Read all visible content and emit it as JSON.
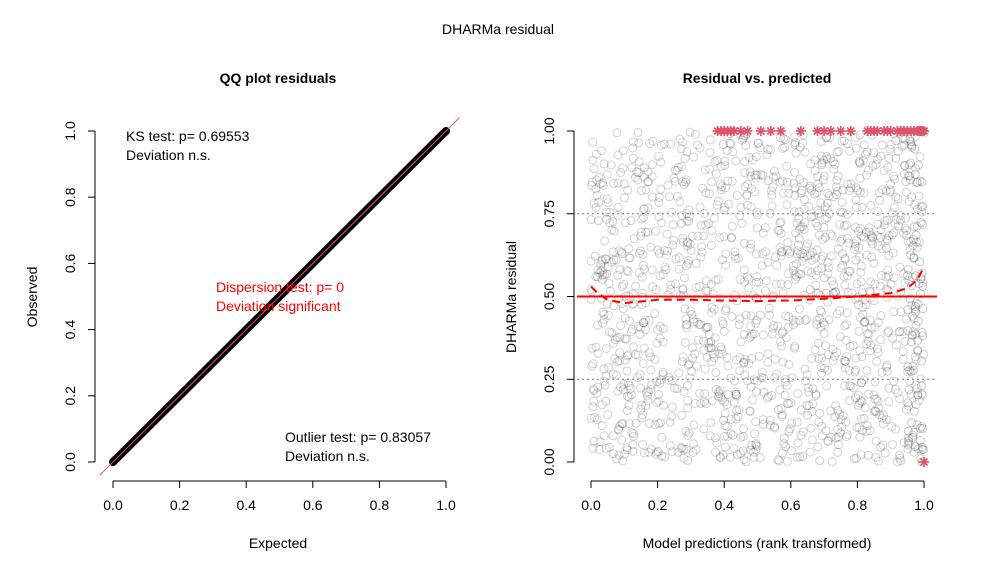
{
  "title": "DHARMa residual",
  "colors": {
    "line_red": "#ff0000",
    "identity_red": "#df536b",
    "outlier": "#df536b",
    "points": "#000000",
    "grid": "#777777"
  },
  "chart_data": [
    {
      "type": "scatter",
      "panel": "left",
      "title": "QQ plot residuals",
      "xlabel": "Expected",
      "ylabel": "Observed",
      "xlim": [
        0,
        1
      ],
      "ylim": [
        0,
        1
      ],
      "xticks": [
        "0.0",
        "0.2",
        "0.4",
        "0.6",
        "0.8",
        "1.0"
      ],
      "yticks": [
        "0.0",
        "0.2",
        "0.4",
        "0.6",
        "0.8",
        "1.0"
      ],
      "series": [
        {
          "x": [
            0,
            1
          ],
          "y": [
            0,
            1
          ]
        }
      ],
      "annotations": {
        "ks": [
          "KS test: p= 0.69553",
          "Deviation  n.s."
        ],
        "dispersion": [
          "Dispersion test: p= 0",
          "Deviation  significant"
        ],
        "outlier": [
          "Outlier test: p= 0.83057",
          "Deviation  n.s."
        ]
      }
    },
    {
      "type": "scatter",
      "panel": "right",
      "title": "Residual vs. predicted",
      "xlabel": "Model predictions (rank transformed)",
      "ylabel": "DHARMa residual",
      "xlim": [
        0,
        1
      ],
      "ylim": [
        0,
        1
      ],
      "xticks": [
        "0.0",
        "0.2",
        "0.4",
        "0.6",
        "0.8",
        "1.0"
      ],
      "yticks": [
        "0.00",
        "0.25",
        "0.50",
        "0.75",
        "1.00"
      ],
      "hlines": [
        0.25,
        0.5,
        0.75
      ],
      "smooth": {
        "x": [
          0.0,
          0.02,
          0.05,
          0.1,
          0.15,
          0.2,
          0.3,
          0.4,
          0.5,
          0.6,
          0.7,
          0.8,
          0.85,
          0.9,
          0.95,
          0.98,
          1.0
        ],
        "y": [
          0.53,
          0.51,
          0.49,
          0.48,
          0.485,
          0.49,
          0.49,
          0.488,
          0.486,
          0.488,
          0.493,
          0.5,
          0.505,
          0.51,
          0.525,
          0.55,
          0.59
        ]
      },
      "outliers_top_x": [
        0.38,
        0.39,
        0.4,
        0.41,
        0.42,
        0.43,
        0.45,
        0.47,
        0.51,
        0.54,
        0.57,
        0.63,
        0.68,
        0.7,
        0.72,
        0.75,
        0.78,
        0.83,
        0.84,
        0.85,
        0.86,
        0.88,
        0.89,
        0.9,
        0.92,
        0.93,
        0.94,
        0.95,
        0.96,
        0.97,
        0.98,
        0.985,
        0.99,
        0.995,
        1.0
      ],
      "outliers_bottom_x": [
        1.0
      ]
    }
  ]
}
